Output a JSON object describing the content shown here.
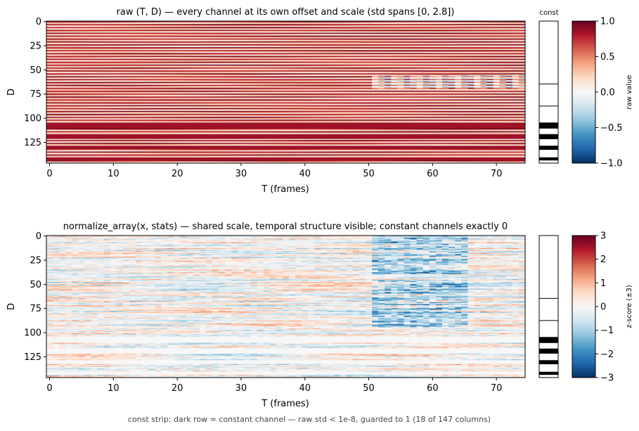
{
  "footer": "const strip: dark row = constant channel — raw std < 1e-8, guarded to 1 (18 of 147 columns)",
  "chart_data": [
    {
      "type": "heatmap",
      "title": "raw (T, D) — every channel at its own offset and scale (std spans [0, 2.8])",
      "xlabel": "T (frames)",
      "ylabel": "D",
      "xlim": [
        0,
        75
      ],
      "ylim": [
        147,
        0
      ],
      "xticks": [
        0,
        10,
        20,
        30,
        40,
        50,
        60,
        70
      ],
      "yticks": [
        0,
        25,
        50,
        75,
        100,
        125
      ],
      "colormap": "RdBu_r",
      "colorbar": {
        "label": "raw value",
        "range": [
          -1.0,
          1.0
        ],
        "ticks": [
          "1.0",
          "0.5",
          "0.0",
          "−0.5",
          "−1.0"
        ]
      },
      "const_strip": {
        "label": "const",
        "dark_rows": [
          105,
          106,
          107,
          108,
          109,
          110,
          117,
          118,
          119,
          120,
          121,
          129,
          130,
          131,
          132,
          141,
          142,
          143
        ],
        "separators": [
          65,
          88
        ]
      }
    },
    {
      "type": "heatmap",
      "title": "normalize_array(x, stats) — shared scale, temporal structure visible; constant channels exactly 0",
      "xlabel": "T (frames)",
      "ylabel": "D",
      "xlim": [
        0,
        75
      ],
      "ylim": [
        147,
        0
      ],
      "xticks": [
        0,
        10,
        20,
        30,
        40,
        50,
        60,
        70
      ],
      "yticks": [
        0,
        25,
        50,
        75,
        100,
        125
      ],
      "colormap": "RdBu_r",
      "colorbar": {
        "label": "z-score (±3)",
        "range": [
          -3,
          3
        ],
        "ticks": [
          "3",
          "2",
          "1",
          "0",
          "−1",
          "−2",
          "−3"
        ]
      },
      "const_strip": {
        "dark_rows": [
          105,
          106,
          107,
          108,
          109,
          110,
          117,
          118,
          119,
          120,
          121,
          129,
          130,
          131,
          132,
          141,
          142,
          143
        ],
        "separators": [
          65,
          88
        ]
      }
    }
  ]
}
